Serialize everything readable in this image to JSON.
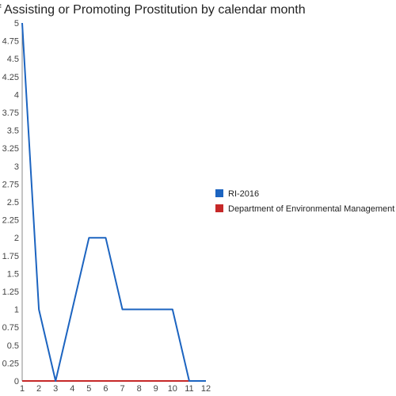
{
  "chart_data": {
    "type": "line",
    "title": "f Assisting or Promoting Prostitution by calendar month",
    "xlabel": "",
    "ylabel": "",
    "categories": [
      "1",
      "2",
      "3",
      "4",
      "5",
      "6",
      "7",
      "8",
      "9",
      "10",
      "11",
      "12"
    ],
    "x": [
      1,
      2,
      3,
      4,
      5,
      6,
      7,
      8,
      9,
      10,
      11,
      12
    ],
    "xlim": [
      1,
      12
    ],
    "ylim": [
      0,
      5
    ],
    "y_ticks": [
      "0",
      "0.25",
      "0.5",
      "0.75",
      "1",
      "1.25",
      "1.5",
      "1.75",
      "2",
      "2.25",
      "2.5",
      "2.75",
      "3",
      "3.25",
      "3.5",
      "3.75",
      "4",
      "4.25",
      "4.5",
      "4.75",
      "5"
    ],
    "grid": false,
    "legend_position": "right",
    "series": [
      {
        "name": "RI-2016",
        "color": "#1c64c0",
        "values": [
          5,
          1,
          0,
          1,
          2,
          2,
          1,
          1,
          1,
          1,
          0,
          0
        ]
      },
      {
        "name": "Department of Environmental Management",
        "color": "#c62828",
        "values": [
          0,
          0,
          0,
          0,
          0,
          0,
          0,
          0,
          0,
          0,
          0,
          0
        ]
      }
    ]
  }
}
